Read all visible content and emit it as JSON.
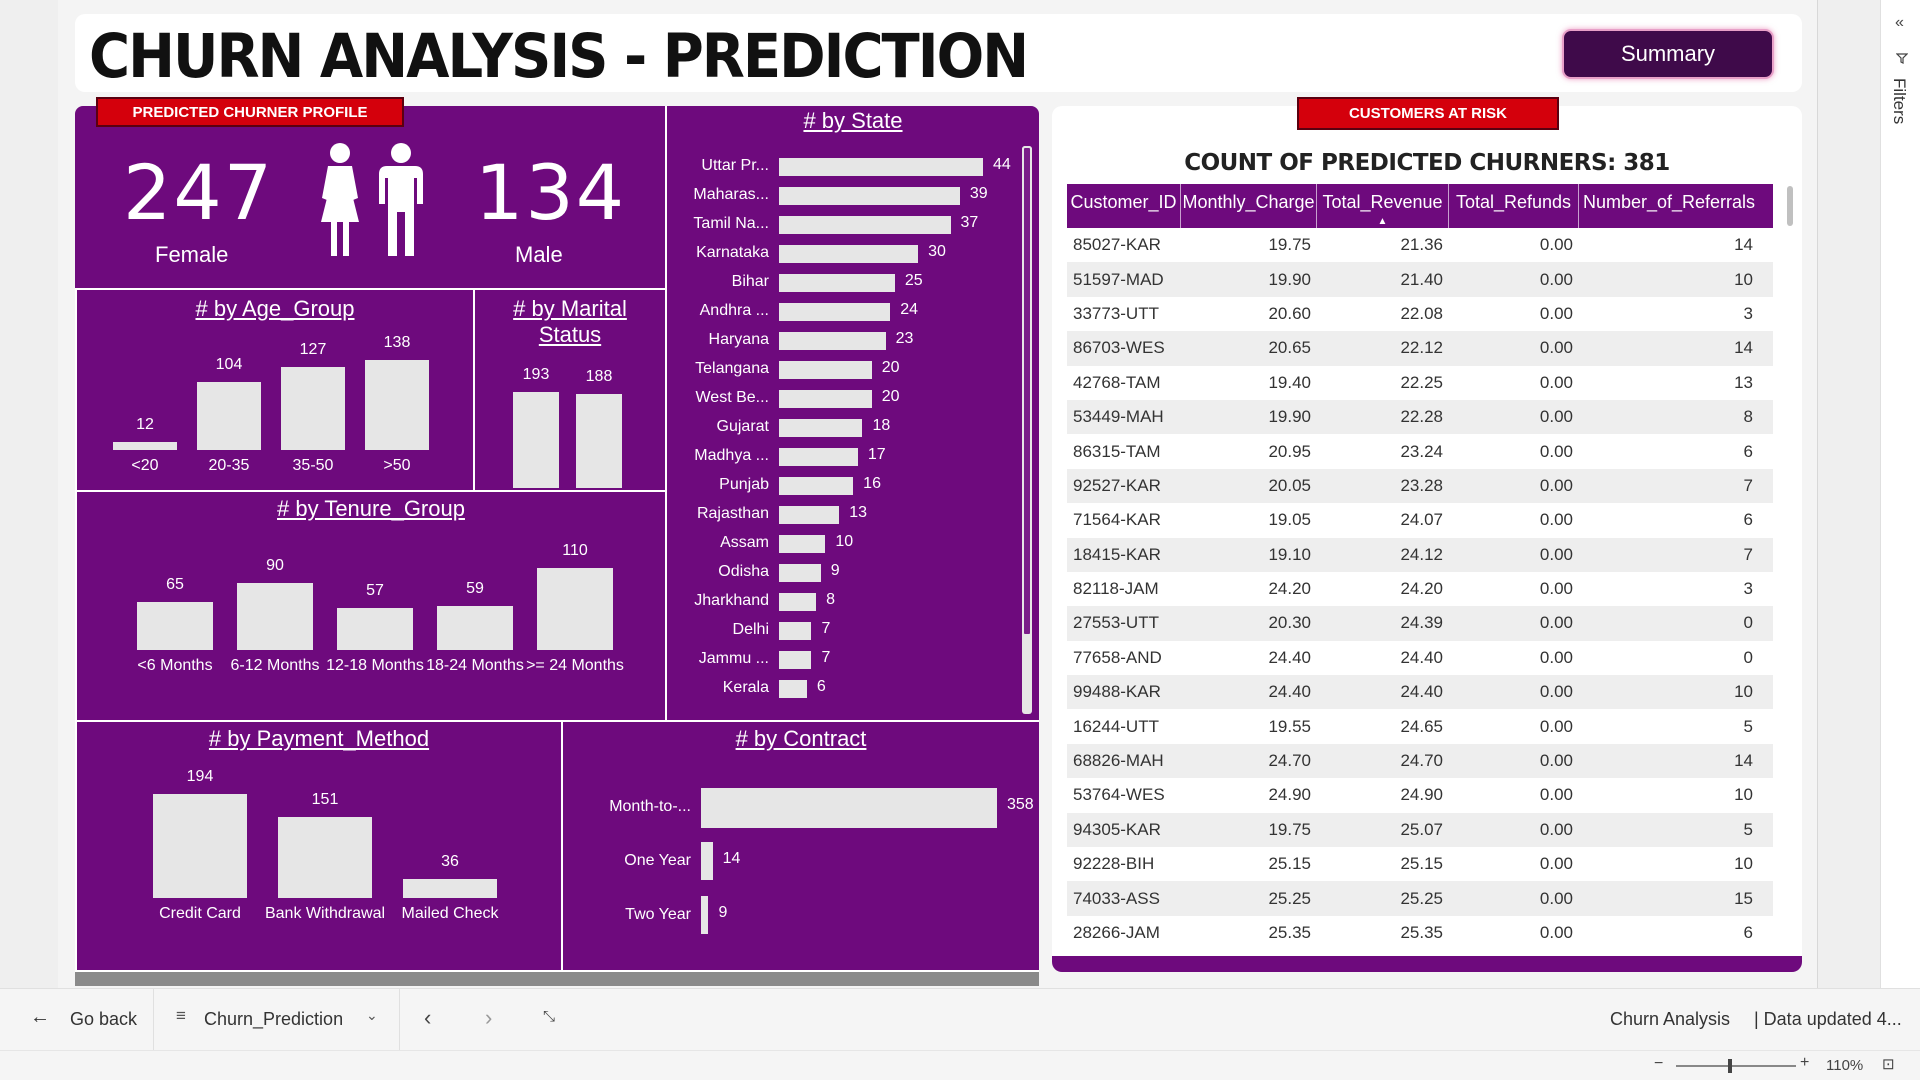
{
  "header": {
    "title": "CHURN ANALYSIS - PREDICTION",
    "summary_button": "Summary"
  },
  "left": {
    "profile_tag": "PREDICTED CHURNER PROFILE",
    "female_count": "247",
    "female_label": "Female",
    "male_count": "134",
    "male_label": "Male",
    "age_title": "# by Age_Group",
    "marital_title": "# by Marital Status",
    "tenure_title": "# by Tenure_Group",
    "state_title": "# by State",
    "payment_title": "# by Payment_Method",
    "contract_title": "# by Contract"
  },
  "chart_data": [
    {
      "type": "bar",
      "title": "# by Age_Group",
      "categories": [
        "<20",
        "20-35",
        "35-50",
        ">50"
      ],
      "values": [
        12,
        104,
        127,
        138
      ]
    },
    {
      "type": "bar",
      "title": "# by Marital Status",
      "categories": [
        "",
        ""
      ],
      "values": [
        193,
        188
      ]
    },
    {
      "type": "bar",
      "title": "# by Tenure_Group",
      "categories": [
        "<6 Months",
        "6-12 Months",
        "12-18 Months",
        "18-24 Months",
        ">= 24 Months"
      ],
      "values": [
        65,
        90,
        57,
        59,
        110
      ]
    },
    {
      "type": "bar",
      "orientation": "horizontal",
      "title": "# by State",
      "categories": [
        "Uttar Pr...",
        "Maharas...",
        "Tamil Na...",
        "Karnataka",
        "Bihar",
        "Andhra ...",
        "Haryana",
        "Telangana",
        "West Be...",
        "Gujarat",
        "Madhya ...",
        "Punjab",
        "Rajasthan",
        "Assam",
        "Odisha",
        "Jharkhand",
        "Delhi",
        "Jammu ...",
        "Kerala"
      ],
      "values": [
        44,
        39,
        37,
        30,
        25,
        24,
        23,
        20,
        20,
        18,
        17,
        16,
        13,
        10,
        9,
        8,
        7,
        7,
        6
      ]
    },
    {
      "type": "bar",
      "title": "# by Payment_Method",
      "categories": [
        "Credit Card",
        "Bank Withdrawal",
        "Mailed Check"
      ],
      "values": [
        194,
        151,
        36
      ]
    },
    {
      "type": "bar",
      "orientation": "horizontal",
      "title": "# by Contract",
      "categories": [
        "Month-to-...",
        "One Year",
        "Two Year"
      ],
      "values": [
        358,
        14,
        9
      ]
    },
    {
      "type": "table",
      "title": "COUNT OF PREDICTED CHURNERS: 381",
      "columns": [
        "Customer_ID",
        "Monthly_Charge",
        "Total_Revenue",
        "Total_Refunds",
        "Number_of_Referrals"
      ],
      "sort_column": "Total_Revenue",
      "sort_direction": "ascending",
      "rows": [
        [
          "85027-KAR",
          "19.75",
          "21.36",
          "0.00",
          "14"
        ],
        [
          "51597-MAD",
          "19.90",
          "21.40",
          "0.00",
          "10"
        ],
        [
          "33773-UTT",
          "20.60",
          "22.08",
          "0.00",
          "3"
        ],
        [
          "86703-WES",
          "20.65",
          "22.12",
          "0.00",
          "14"
        ],
        [
          "42768-TAM",
          "19.40",
          "22.25",
          "0.00",
          "13"
        ],
        [
          "53449-MAH",
          "19.90",
          "22.28",
          "0.00",
          "8"
        ],
        [
          "86315-TAM",
          "20.95",
          "23.24",
          "0.00",
          "6"
        ],
        [
          "92527-KAR",
          "20.05",
          "23.28",
          "0.00",
          "7"
        ],
        [
          "71564-KAR",
          "19.05",
          "24.07",
          "0.00",
          "6"
        ],
        [
          "18415-KAR",
          "19.10",
          "24.12",
          "0.00",
          "7"
        ],
        [
          "82118-JAM",
          "24.20",
          "24.20",
          "0.00",
          "3"
        ],
        [
          "27553-UTT",
          "20.30",
          "24.39",
          "0.00",
          "0"
        ],
        [
          "77658-AND",
          "24.40",
          "24.40",
          "0.00",
          "0"
        ],
        [
          "99488-KAR",
          "24.40",
          "24.40",
          "0.00",
          "10"
        ],
        [
          "16244-UTT",
          "19.55",
          "24.65",
          "0.00",
          "5"
        ],
        [
          "68826-MAH",
          "24.70",
          "24.70",
          "0.00",
          "14"
        ],
        [
          "53764-WES",
          "24.90",
          "24.90",
          "0.00",
          "10"
        ],
        [
          "94305-KAR",
          "19.75",
          "25.07",
          "0.00",
          "5"
        ],
        [
          "92228-BIH",
          "25.15",
          "25.15",
          "0.00",
          "10"
        ],
        [
          "74033-ASS",
          "25.25",
          "25.25",
          "0.00",
          "15"
        ],
        [
          "28266-JAM",
          "25.35",
          "25.35",
          "0.00",
          "6"
        ]
      ]
    }
  ],
  "right": {
    "risk_tag": "CUSTOMERS AT RISK",
    "table_title": "COUNT OF PREDICTED CHURNERS: 381"
  },
  "bottom": {
    "go_back": "Go back",
    "page_name": "Churn_Prediction",
    "report_name": "Churn Analysis",
    "data_updated": "| Data updated 4...",
    "zoom": "110%"
  },
  "filters": {
    "label": "Filters"
  },
  "colors": {
    "panel": "#6e0a7d",
    "tag": "#d4000c",
    "bar": "#e6e6e6",
    "button": "#3f0a4a"
  },
  "icons": [
    "person-female-icon",
    "person-male-icon",
    "back-arrow-icon",
    "page-list-icon",
    "chevron-down-icon",
    "chevron-left-icon",
    "chevron-right-icon",
    "collapse-icon",
    "double-chevron-icon",
    "filter-icon",
    "fit-page-icon"
  ]
}
